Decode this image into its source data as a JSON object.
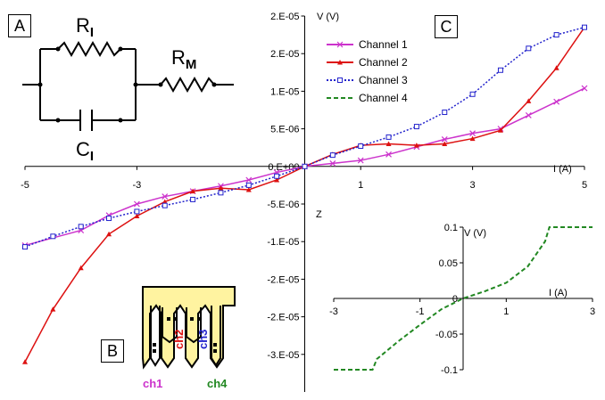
{
  "panels": {
    "a": "A",
    "b": "B",
    "c": "C"
  },
  "circuit": {
    "r_i": "R",
    "r_i_sub": "I",
    "r_m": "R",
    "r_m_sub": "M",
    "c_i": "C",
    "c_i_sub": "I"
  },
  "chip": {
    "labels": [
      "ch1",
      "ch2",
      "ch3",
      "ch4"
    ]
  },
  "colors": {
    "ch1": "#cc33cc",
    "ch2": "#dd1111",
    "ch3": "#2222cc",
    "ch4": "#228822",
    "chip_fill": "#fff3a0"
  },
  "chart_data": [
    {
      "type": "line",
      "xlabel": "I (A)",
      "ylabel": "V (V)",
      "z_label": "Z",
      "xlim": [
        -5,
        5
      ],
      "ylim": [
        -3e-05,
        2e-05
      ],
      "x_ticks": [
        "-5",
        "-3",
        "1",
        "3",
        "5"
      ],
      "x_tick_values": [
        -5,
        -3,
        1,
        3,
        5
      ],
      "y_ticks": [
        "2.E-05",
        "2.E-05",
        "1.E-05",
        "5.E-06",
        "0.E+00",
        "-5.E-06",
        "-1.E-05",
        "-2.E-05",
        "-2.E-05",
        "-3.E-05"
      ],
      "y_tick_values": [
        2e-05,
        1.5e-05,
        1e-05,
        5e-06,
        0,
        -5e-06,
        -1e-05,
        -1.5e-05,
        -2e-05,
        -2.5e-05
      ],
      "legend_position": "top-right",
      "series": [
        {
          "name": "Channel 1",
          "marker": "x",
          "dash": "solid",
          "x": [
            -5,
            -4,
            -3.5,
            -3,
            -2.5,
            -2,
            -1.5,
            -1,
            -0.5,
            0,
            0.5,
            1,
            1.5,
            2,
            2.5,
            3,
            3.5,
            4,
            4.5,
            5
          ],
          "y": [
            -1.05e-05,
            -8.5e-06,
            -6.5e-06,
            -5e-06,
            -4e-06,
            -3.3e-06,
            -2.6e-06,
            -1.8e-06,
            -8e-07,
            0,
            4e-07,
            8e-07,
            1.6e-06,
            2.6e-06,
            3.6e-06,
            4.4e-06,
            5e-06,
            6.8e-06,
            8.6e-06,
            1.04e-05
          ]
        },
        {
          "name": "Channel 2",
          "marker": "triangle",
          "dash": "solid",
          "x": [
            -5,
            -4.5,
            -4,
            -3.5,
            -3,
            -2.5,
            -2,
            -1.5,
            -1,
            -0.5,
            0,
            0.5,
            1,
            1.5,
            2,
            2.5,
            3,
            3.5,
            4,
            4.5,
            5
          ],
          "y": [
            -2.6e-05,
            -1.9e-05,
            -1.35e-05,
            -9e-06,
            -6.6e-06,
            -4.7e-06,
            -3.3e-06,
            -2.9e-06,
            -3.1e-06,
            -1.8e-06,
            0,
            1.6e-06,
            2.8e-06,
            3e-06,
            2.8e-06,
            3e-06,
            3.7e-06,
            4.8e-06,
            8.7e-06,
            1.31e-05,
            1.85e-05
          ]
        },
        {
          "name": "Channel 3",
          "marker": "square",
          "dash": "dotted",
          "x": [
            -5,
            -4.5,
            -4,
            -3.5,
            -3,
            -2.5,
            -2,
            -1.5,
            -1,
            -0.5,
            0,
            0.5,
            1,
            1.5,
            2,
            2.5,
            3,
            3.5,
            4,
            4.5,
            5
          ],
          "y": [
            -1.07e-05,
            -9.3e-06,
            -8e-06,
            -6.9e-06,
            -6e-06,
            -5.2e-06,
            -4.4e-06,
            -3.5e-06,
            -2.5e-06,
            -1.3e-06,
            0,
            1.5e-06,
            2.7e-06,
            3.9e-06,
            5.3e-06,
            7.2e-06,
            9.6e-06,
            1.28e-05,
            1.57e-05,
            1.75e-05,
            1.85e-05
          ]
        },
        {
          "name": "Channel 4",
          "marker": "none",
          "dash": "dashed",
          "x": [],
          "y": []
        }
      ]
    },
    {
      "type": "line",
      "xlabel": "I (A)",
      "ylabel": "V (V)",
      "xlim": [
        -3,
        3
      ],
      "ylim": [
        -0.1,
        0.1
      ],
      "x_ticks": [
        "-3",
        "-1",
        "1",
        "3"
      ],
      "x_tick_values": [
        -3,
        -1,
        1,
        3
      ],
      "y_ticks": [
        "0.1",
        "0.05",
        "0",
        "-0.05",
        "-0.1"
      ],
      "y_tick_values": [
        0.1,
        0.05,
        0,
        -0.05,
        -0.1
      ],
      "series": [
        {
          "name": "Channel 4",
          "dash": "dashed",
          "x": [
            -3,
            -2.1,
            -2,
            -1.5,
            -1,
            -0.5,
            0,
            0.5,
            1,
            1.5,
            1.9,
            2,
            3
          ],
          "y": [
            -0.1,
            -0.1,
            -0.085,
            -0.06,
            -0.037,
            -0.015,
            0,
            0.01,
            0.022,
            0.045,
            0.08,
            0.1,
            0.1
          ]
        }
      ]
    }
  ]
}
